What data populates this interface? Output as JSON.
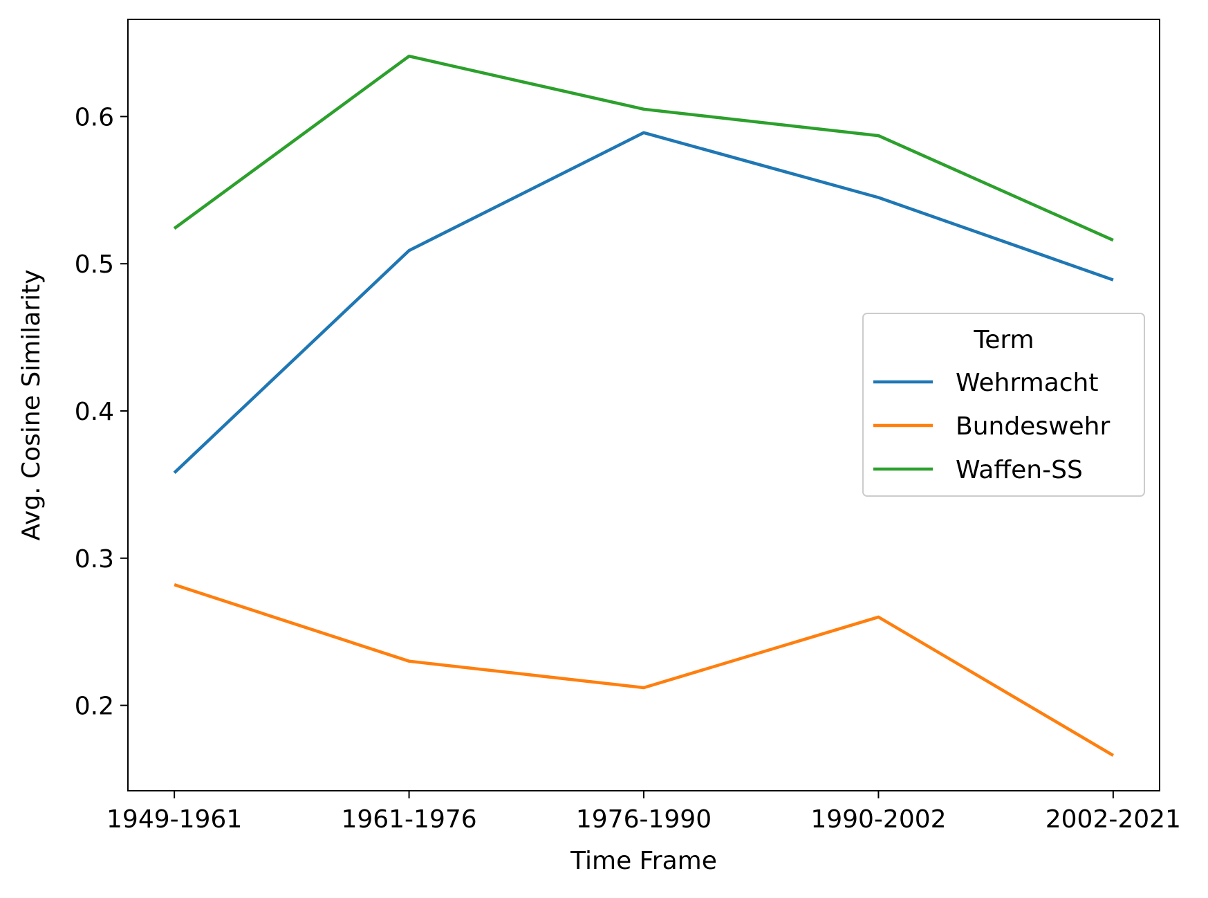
{
  "chart_data": {
    "type": "line",
    "title": "",
    "xlabel": "Time Frame",
    "ylabel": "Avg. Cosine Similarity",
    "categories": [
      "1949-1961",
      "1961-1976",
      "1976-1990",
      "1990-2002",
      "2002-2021"
    ],
    "ylim": [
      0.142,
      0.666
    ],
    "yticks": [
      "0.2",
      "0.3",
      "0.4",
      "0.5",
      "0.6"
    ],
    "grid": false,
    "legend": {
      "title": "Term",
      "placement": "center-right"
    },
    "series": [
      {
        "name": "Wehrmacht",
        "color": "#1f77b4",
        "values": [
          0.358,
          0.509,
          0.589,
          0.545,
          0.489
        ]
      },
      {
        "name": "Bundeswehr",
        "color": "#ff7f0e",
        "values": [
          0.282,
          0.23,
          0.212,
          0.26,
          0.166
        ]
      },
      {
        "name": "Waffen-SS",
        "color": "#2ca02c",
        "values": [
          0.524,
          0.641,
          0.605,
          0.587,
          0.516
        ]
      }
    ]
  }
}
